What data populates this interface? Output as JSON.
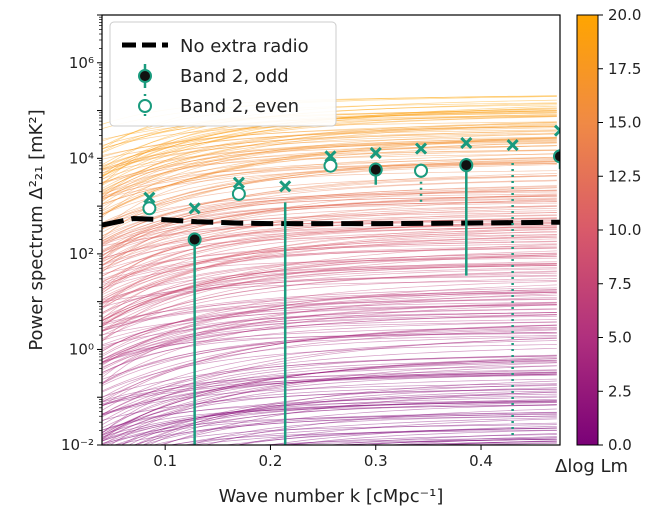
{
  "chart_data": {
    "type": "line",
    "xlabel": "Wave number k [cMpc⁻¹]",
    "ylabel": "Power spectrum Δ²₂₁ [mK²]",
    "xlim": [
      0.04,
      0.475
    ],
    "ylim": [
      0.01,
      10000000
    ],
    "yscale": "log",
    "x_ticks": [
      0.1,
      0.2,
      0.3,
      0.4
    ],
    "x_tick_labels": [
      "0.1",
      "0.2",
      "0.3",
      "0.4"
    ],
    "y_ticks": [
      0.01,
      1,
      100,
      10000,
      1000000
    ],
    "y_tick_labels": [
      "10⁻²",
      "10⁰",
      "10²",
      "10⁴",
      "10⁶"
    ],
    "grid": false,
    "legend_position": "top-left",
    "legend": [
      "No extra radio",
      "Band 2, odd",
      "Band 2, even"
    ],
    "colorbar": {
      "label": "Δlog Lm",
      "range": [
        0,
        20
      ],
      "ticks": [
        0,
        2.5,
        5,
        7.5,
        10,
        12.5,
        15,
        17.5,
        20
      ],
      "tick_labels": [
        "0.0",
        "2.5",
        "5.0",
        "7.5",
        "10.0",
        "12.5",
        "15.0",
        "17.5",
        "20.0"
      ],
      "colormap": [
        "#7a0177",
        "#b0307e",
        "#d95a6a",
        "#f08a45",
        "#ffa500"
      ]
    },
    "series": [
      {
        "name": "No extra radio",
        "style": "dashed",
        "color": "#000000",
        "x": [
          0.04,
          0.07,
          0.1,
          0.13,
          0.17,
          0.2,
          0.25,
          0.3,
          0.35,
          0.4,
          0.45,
          0.475
        ],
        "y": [
          400,
          550,
          520,
          470,
          440,
          430,
          430,
          430,
          435,
          445,
          455,
          460
        ]
      },
      {
        "name": "Band 2, odd",
        "marker": "filled-circle",
        "color": "#1a9b7e",
        "x": [
          0.128,
          0.3,
          0.386,
          0.475
        ],
        "y": [
          200,
          5800,
          7200,
          11000
        ],
        "err_low": [
          0.008,
          2800,
          35,
          6000
        ],
        "err_high": [
          200,
          5800,
          7200,
          11000
        ]
      },
      {
        "name": "Band 2, even",
        "marker": "open-circle",
        "color": "#1a9b7e",
        "x": [
          0.085,
          0.17,
          0.257,
          0.343
        ],
        "y": [
          900,
          1800,
          7000,
          5500
        ],
        "err_low": [
          700,
          1300,
          5500,
          1200
        ],
        "err_high": [
          900,
          1800,
          7000,
          5500
        ]
      },
      {
        "name": "odd upper limits",
        "marker": "x",
        "color": "#1a9b7e",
        "x": [
          0.128,
          0.214,
          0.3,
          0.386,
          0.475
        ],
        "y": [
          900,
          2600,
          13000,
          21000,
          38000
        ]
      },
      {
        "name": "even upper limits",
        "marker": "x",
        "color": "#1a9b7e",
        "x": [
          0.085,
          0.17,
          0.257,
          0.343,
          0.43
        ],
        "y": [
          1500,
          3100,
          11000,
          16000,
          19000
        ]
      },
      {
        "name": "upper-limit drop (odd)",
        "style": "solid",
        "color": "#1a9b7e",
        "x": [
          0.214
        ],
        "y_top": [
          1200
        ],
        "y_bottom": [
          0.008
        ]
      },
      {
        "name": "upper-limit drop (even)",
        "style": "dotted",
        "color": "#1a9b7e",
        "x": [
          0.43
        ],
        "y_top": [
          8000
        ],
        "y_bottom": [
          0.015
        ]
      }
    ],
    "model_curves": {
      "description": "fan of model power spectra colored by Δlog Lm",
      "count": 300,
      "levels_at_k0.3": {
        "low": 0.01,
        "high": 200000
      }
    }
  }
}
